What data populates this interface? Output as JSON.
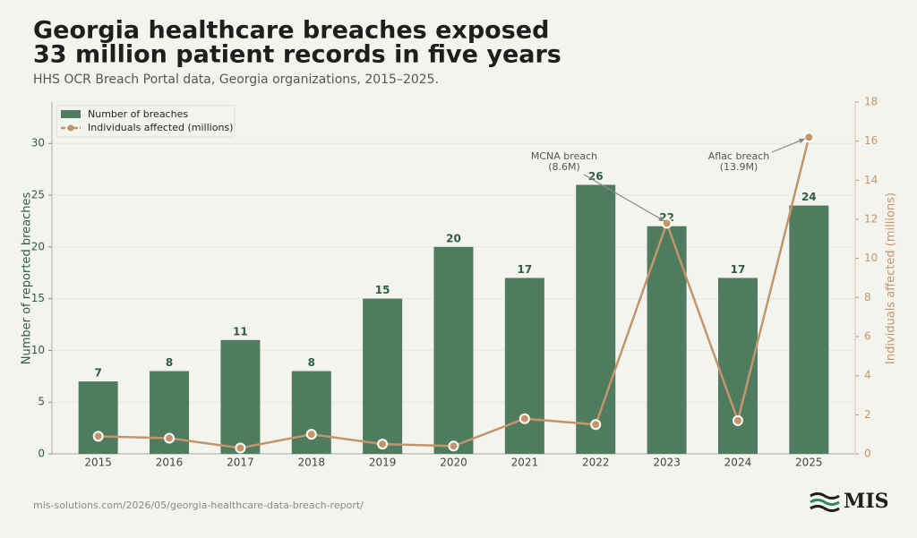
{
  "chart_data": {
    "type": "bar",
    "title": [
      "Georgia healthcare breaches exposed",
      "33 million patient records in five years"
    ],
    "subtitle": "HHS OCR Breach Portal data, Georgia organizations, 2015–2025.",
    "ylabel": "Number of reported breaches",
    "y2label": "Individuals affected (millions)",
    "categories": [
      "2015",
      "2016",
      "2017",
      "2018",
      "2019",
      "2020",
      "2021",
      "2022",
      "2023",
      "2024",
      "2025"
    ],
    "series": [
      {
        "name": "Number of breaches",
        "type": "bar",
        "color": "#4f7c5f",
        "values": [
          7,
          8,
          11,
          8,
          15,
          20,
          17,
          26,
          22,
          17,
          24
        ]
      },
      {
        "name": "Individuals affected (millions)",
        "type": "line",
        "axis": "y2",
        "color": "#c4956a",
        "values": [
          0.9,
          0.8,
          0.3,
          1.0,
          0.5,
          0.4,
          1.8,
          1.5,
          11.8,
          1.7,
          16.2
        ]
      }
    ],
    "ylim": [
      0,
      34
    ],
    "yticks": [
      0,
      5,
      10,
      15,
      20,
      25,
      30
    ],
    "y2lim": [
      0,
      18
    ],
    "y2ticks": [
      0,
      2,
      4,
      6,
      8,
      10,
      12,
      14,
      16,
      18
    ],
    "grid": true,
    "legend": "upper left",
    "annotations": [
      {
        "text": [
          "MCNA breach",
          "(8.6M)"
        ]
      },
      {
        "text": [
          "Aflac breach",
          "(13.9M)"
        ]
      }
    ],
    "source": "mis-solutions.com/2026/05/georgia-healthcare-data-breach-report/",
    "logo": "MIS"
  }
}
